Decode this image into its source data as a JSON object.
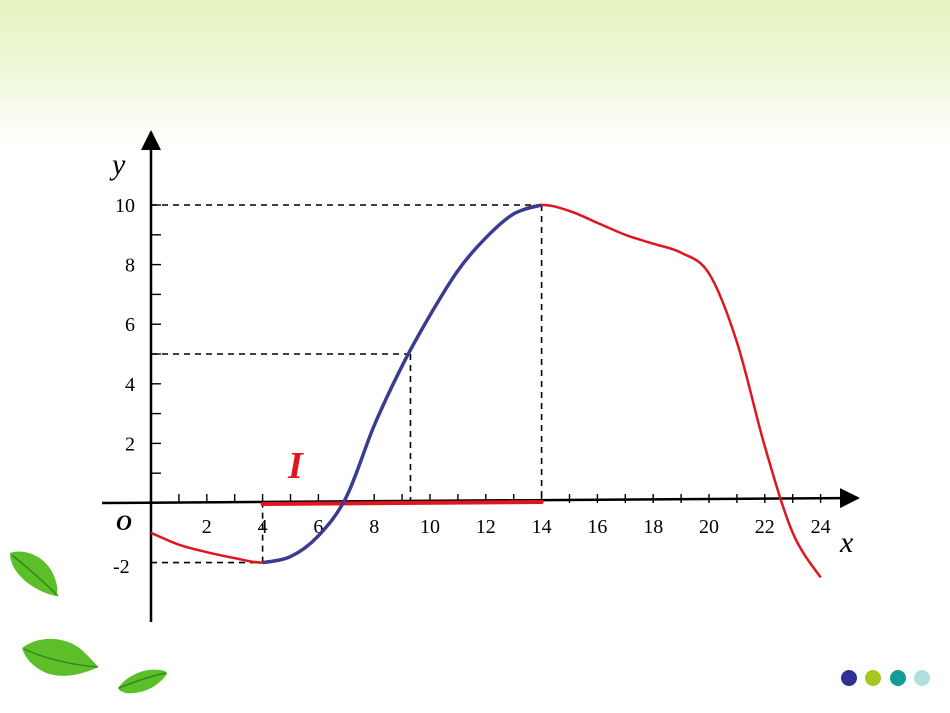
{
  "axes": {
    "x_label": "x",
    "y_label": "y",
    "origin_label": "O",
    "x_ticks": [
      "2",
      "4",
      "6",
      "8",
      "10",
      "12",
      "14",
      "16",
      "18",
      "20",
      "22",
      "24"
    ],
    "y_ticks": [
      "2",
      "4",
      "6",
      "8",
      "10"
    ],
    "y_neg_tick": "-2"
  },
  "interval_label": "I",
  "colors": {
    "curve": "#e0161e",
    "increasing_segment": "#3a3c8f",
    "interval": "#e0161e",
    "band": "#e6f3c0"
  },
  "chart_data": {
    "type": "line",
    "xlim": [
      0,
      24
    ],
    "ylim": [
      -2,
      10
    ],
    "curve_points": [
      [
        0,
        -1
      ],
      [
        1,
        -1.4
      ],
      [
        2,
        -1.65
      ],
      [
        3,
        -1.85
      ],
      [
        4,
        -2
      ],
      [
        5,
        -1.8
      ],
      [
        6,
        -1.1
      ],
      [
        7,
        0.2
      ],
      [
        8,
        2.6
      ],
      [
        9,
        4.6
      ],
      [
        10,
        6.3
      ],
      [
        11,
        7.8
      ],
      [
        12,
        8.9
      ],
      [
        13,
        9.7
      ],
      [
        14,
        10
      ],
      [
        15,
        9.8
      ],
      [
        16,
        9.4
      ],
      [
        17,
        9
      ],
      [
        18,
        8.7
      ],
      [
        19,
        8.4
      ],
      [
        20,
        7.7
      ],
      [
        21,
        5.4
      ],
      [
        22,
        1.9
      ],
      [
        23,
        -1
      ],
      [
        24,
        -2.5
      ]
    ],
    "highlighted_segment": {
      "x_from": 4,
      "x_to": 14
    },
    "guide_points": [
      [
        4,
        -2
      ],
      [
        9.3,
        5
      ],
      [
        14,
        10
      ]
    ],
    "interval": {
      "x_from": 4,
      "x_to": 14
    }
  }
}
